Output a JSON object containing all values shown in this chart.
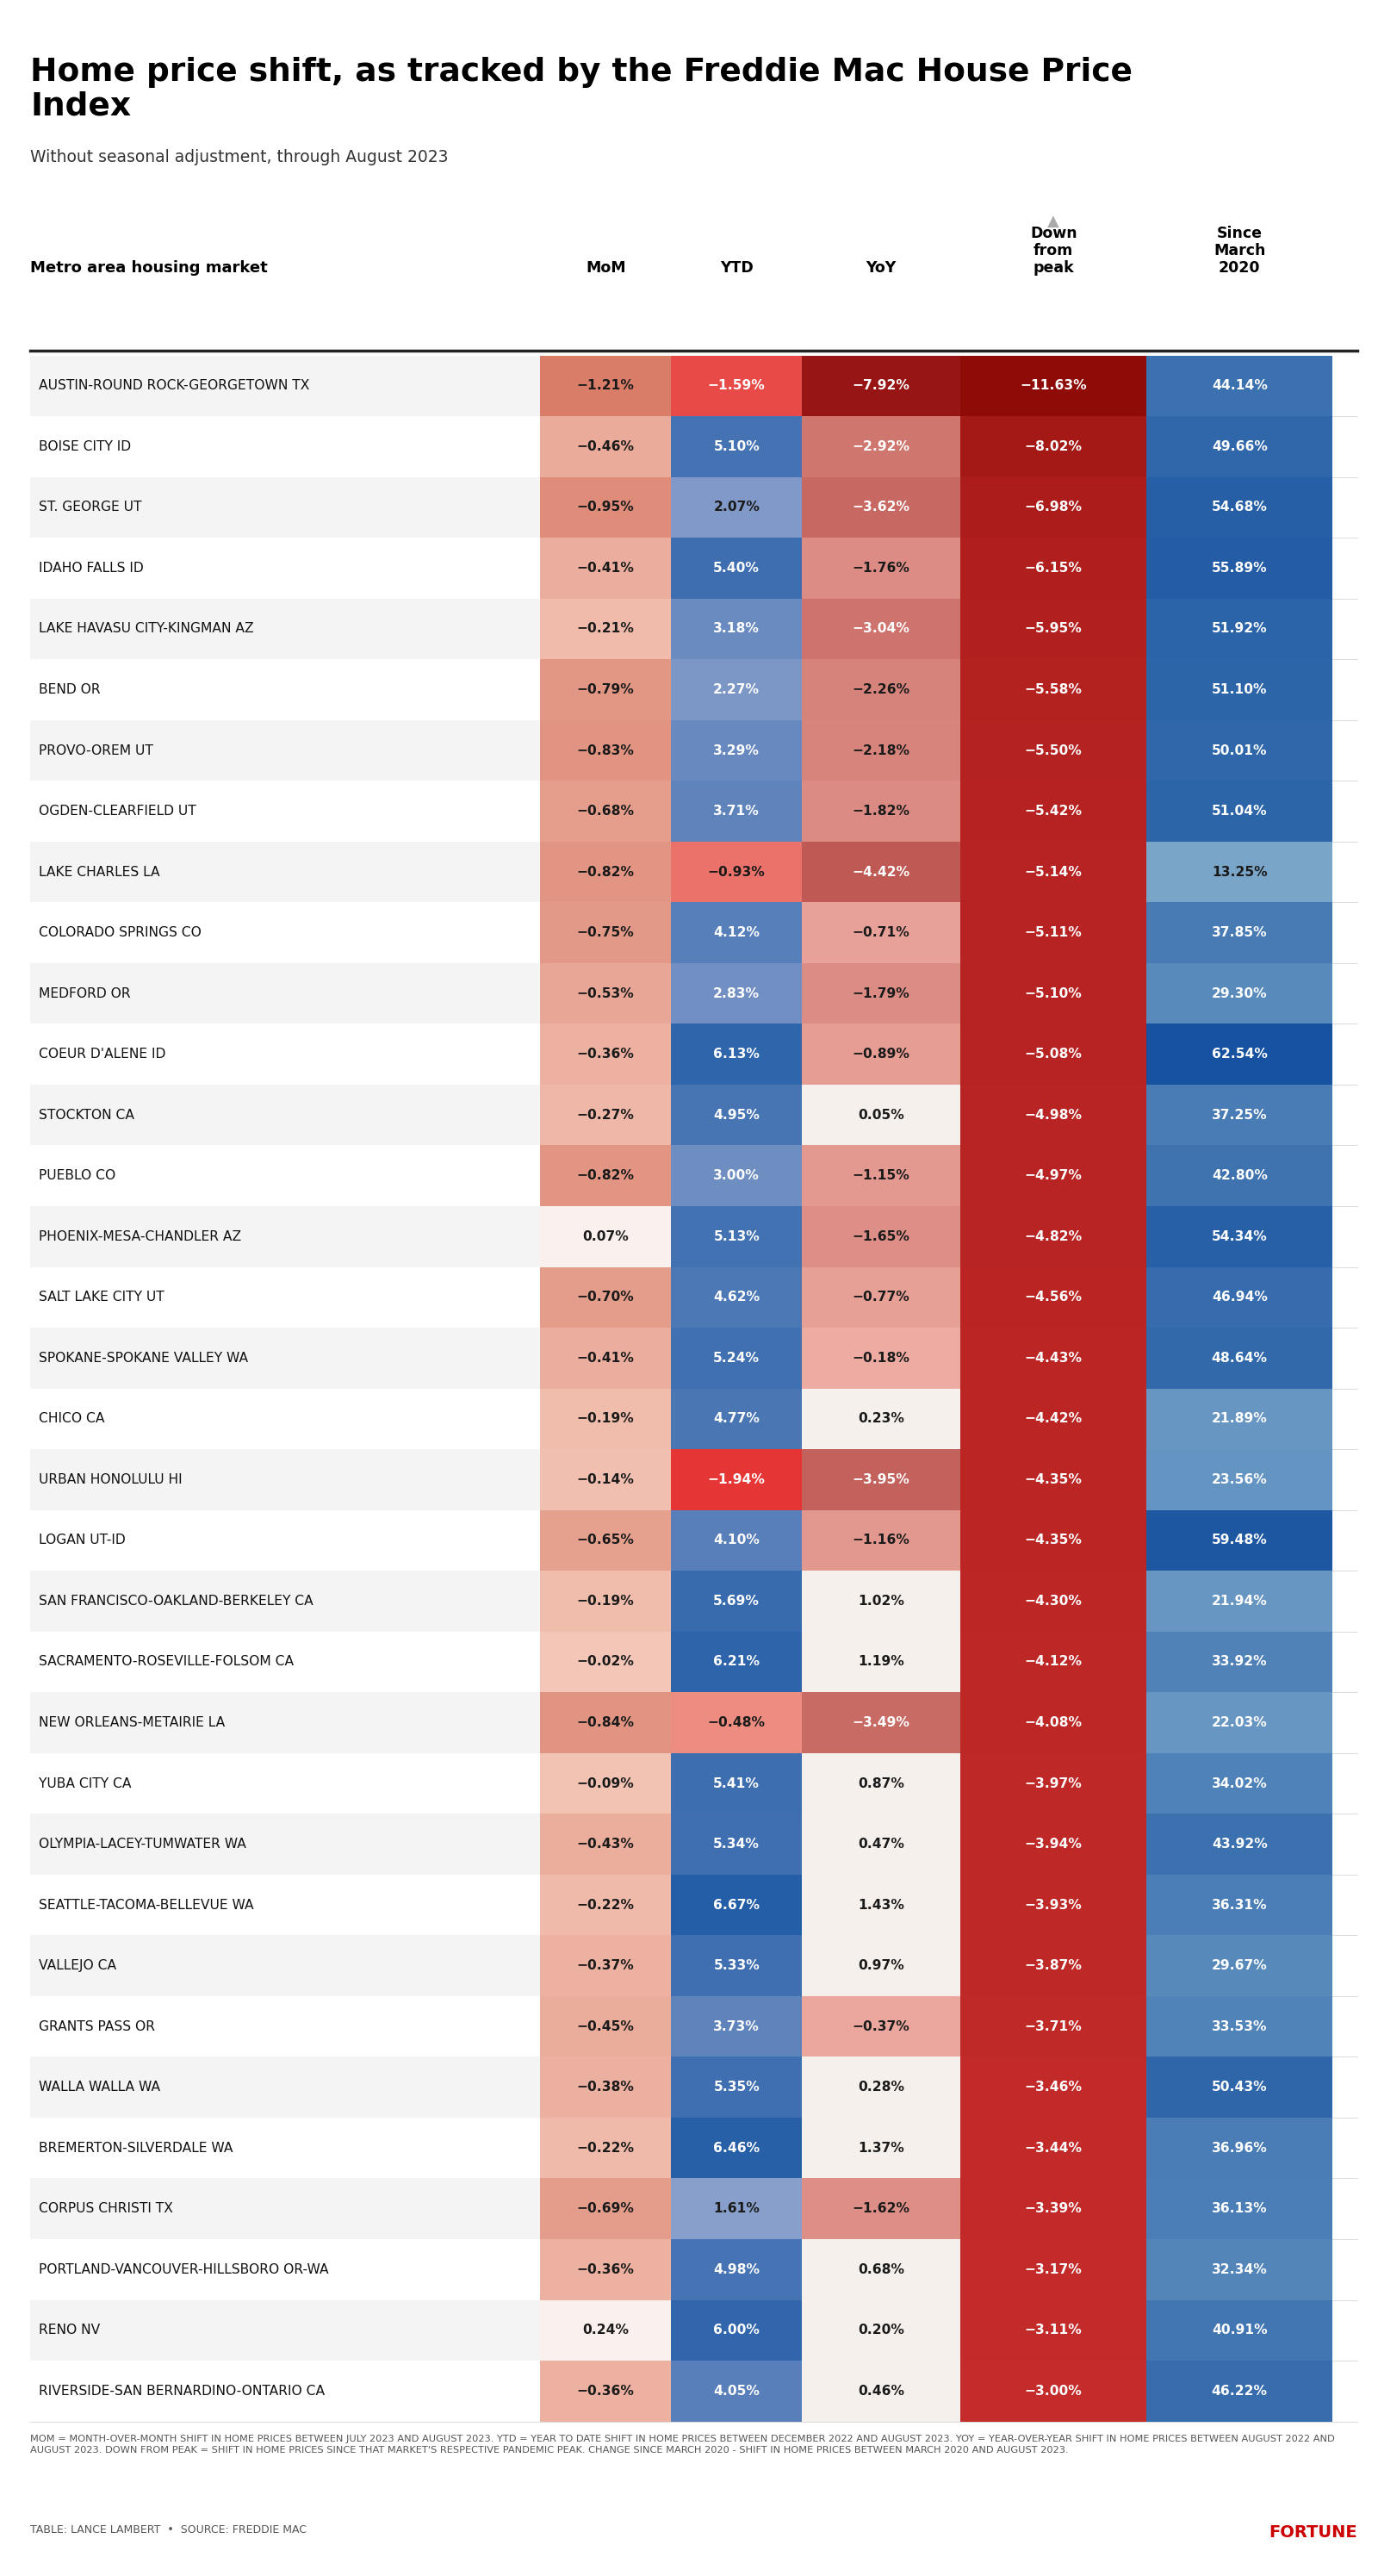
{
  "title": "Home price shift, as tracked by the Freddie Mac House Price\nIndex",
  "subtitle": "Without seasonal adjustment, through August 2023",
  "col_headers": [
    "MoM",
    "YTD",
    "YoY",
    "Down\nfrom\npeak",
    "Since\nMarch\n2020"
  ],
  "footer": "MOM = MONTH-OVER-MONTH SHIFT IN HOME PRICES BETWEEN JULY 2023 AND AUGUST 2023. YTD = YEAR TO DATE SHIFT IN HOME PRICES BETWEEN DECEMBER 2022 AND AUGUST 2023. YOY = YEAR-OVER-YEAR SHIFT IN HOME PRICES BETWEEN AUGUST 2022 AND AUGUST 2023. DOWN FROM PEAK = SHIFT IN HOME PRICES SINCE THAT MARKET'S RESPECTIVE PANDEMIC PEAK. CHANGE SINCE MARCH 2020 - SHIFT IN HOME PRICES BETWEEN MARCH 2020 AND AUGUST 2023.",
  "source": "TABLE: LANCE LAMBERT  •  SOURCE: FREDDIE MAC",
  "brand": "FORTUNE",
  "rows": [
    {
      "market": "AUSTIN-ROUND ROCK-GEORGETOWN TX",
      "mom": -1.21,
      "ytd": -1.59,
      "yoy": -7.92,
      "peak": -11.63,
      "since2020": 44.14
    },
    {
      "market": "BOISE CITY ID",
      "mom": -0.46,
      "ytd": 5.1,
      "yoy": -2.92,
      "peak": -8.02,
      "since2020": 49.66
    },
    {
      "market": "ST. GEORGE UT",
      "mom": -0.95,
      "ytd": 2.07,
      "yoy": -3.62,
      "peak": -6.98,
      "since2020": 54.68
    },
    {
      "market": "IDAHO FALLS ID",
      "mom": -0.41,
      "ytd": 5.4,
      "yoy": -1.76,
      "peak": -6.15,
      "since2020": 55.89
    },
    {
      "market": "LAKE HAVASU CITY-KINGMAN AZ",
      "mom": -0.21,
      "ytd": 3.18,
      "yoy": -3.04,
      "peak": -5.95,
      "since2020": 51.92
    },
    {
      "market": "BEND OR",
      "mom": -0.79,
      "ytd": 2.27,
      "yoy": -2.26,
      "peak": -5.58,
      "since2020": 51.1
    },
    {
      "market": "PROVO-OREM UT",
      "mom": -0.83,
      "ytd": 3.29,
      "yoy": -2.18,
      "peak": -5.5,
      "since2020": 50.01
    },
    {
      "market": "OGDEN-CLEARFIELD UT",
      "mom": -0.68,
      "ytd": 3.71,
      "yoy": -1.82,
      "peak": -5.42,
      "since2020": 51.04
    },
    {
      "market": "LAKE CHARLES LA",
      "mom": -0.82,
      "ytd": -0.93,
      "yoy": -4.42,
      "peak": -5.14,
      "since2020": 13.25
    },
    {
      "market": "COLORADO SPRINGS CO",
      "mom": -0.75,
      "ytd": 4.12,
      "yoy": -0.71,
      "peak": -5.11,
      "since2020": 37.85
    },
    {
      "market": "MEDFORD OR",
      "mom": -0.53,
      "ytd": 2.83,
      "yoy": -1.79,
      "peak": -5.1,
      "since2020": 29.3
    },
    {
      "market": "COEUR D'ALENE ID",
      "mom": -0.36,
      "ytd": 6.13,
      "yoy": -0.89,
      "peak": -5.08,
      "since2020": 62.54
    },
    {
      "market": "STOCKTON CA",
      "mom": -0.27,
      "ytd": 4.95,
      "yoy": 0.05,
      "peak": -4.98,
      "since2020": 37.25
    },
    {
      "market": "PUEBLO CO",
      "mom": -0.82,
      "ytd": 3.0,
      "yoy": -1.15,
      "peak": -4.97,
      "since2020": 42.8
    },
    {
      "market": "PHOENIX-MESA-CHANDLER AZ",
      "mom": 0.07,
      "ytd": 5.13,
      "yoy": -1.65,
      "peak": -4.82,
      "since2020": 54.34
    },
    {
      "market": "SALT LAKE CITY UT",
      "mom": -0.7,
      "ytd": 4.62,
      "yoy": -0.77,
      "peak": -4.56,
      "since2020": 46.94
    },
    {
      "market": "SPOKANE-SPOKANE VALLEY WA",
      "mom": -0.41,
      "ytd": 5.24,
      "yoy": -0.18,
      "peak": -4.43,
      "since2020": 48.64
    },
    {
      "market": "CHICO CA",
      "mom": -0.19,
      "ytd": 4.77,
      "yoy": 0.23,
      "peak": -4.42,
      "since2020": 21.89
    },
    {
      "market": "URBAN HONOLULU HI",
      "mom": -0.14,
      "ytd": -1.94,
      "yoy": -3.95,
      "peak": -4.35,
      "since2020": 23.56
    },
    {
      "market": "LOGAN UT-ID",
      "mom": -0.65,
      "ytd": 4.1,
      "yoy": -1.16,
      "peak": -4.35,
      "since2020": 59.48
    },
    {
      "market": "SAN FRANCISCO-OAKLAND-BERKELEY CA",
      "mom": -0.19,
      "ytd": 5.69,
      "yoy": 1.02,
      "peak": -4.3,
      "since2020": 21.94
    },
    {
      "market": "SACRAMENTO-ROSEVILLE-FOLSOM CA",
      "mom": -0.02,
      "ytd": 6.21,
      "yoy": 1.19,
      "peak": -4.12,
      "since2020": 33.92
    },
    {
      "market": "NEW ORLEANS-METAIRIE LA",
      "mom": -0.84,
      "ytd": -0.48,
      "yoy": -3.49,
      "peak": -4.08,
      "since2020": 22.03
    },
    {
      "market": "YUBA CITY CA",
      "mom": -0.09,
      "ytd": 5.41,
      "yoy": 0.87,
      "peak": -3.97,
      "since2020": 34.02
    },
    {
      "market": "OLYMPIA-LACEY-TUMWATER WA",
      "mom": -0.43,
      "ytd": 5.34,
      "yoy": 0.47,
      "peak": -3.94,
      "since2020": 43.92
    },
    {
      "market": "SEATTLE-TACOMA-BELLEVUE WA",
      "mom": -0.22,
      "ytd": 6.67,
      "yoy": 1.43,
      "peak": -3.93,
      "since2020": 36.31
    },
    {
      "market": "VALLEJO CA",
      "mom": -0.37,
      "ytd": 5.33,
      "yoy": 0.97,
      "peak": -3.87,
      "since2020": 29.67
    },
    {
      "market": "GRANTS PASS OR",
      "mom": -0.45,
      "ytd": 3.73,
      "yoy": -0.37,
      "peak": -3.71,
      "since2020": 33.53
    },
    {
      "market": "WALLA WALLA WA",
      "mom": -0.38,
      "ytd": 5.35,
      "yoy": 0.28,
      "peak": -3.46,
      "since2020": 50.43
    },
    {
      "market": "BREMERTON-SILVERDALE WA",
      "mom": -0.22,
      "ytd": 6.46,
      "yoy": 1.37,
      "peak": -3.44,
      "since2020": 36.96
    },
    {
      "market": "CORPUS CHRISTI TX",
      "mom": -0.69,
      "ytd": 1.61,
      "yoy": -1.62,
      "peak": -3.39,
      "since2020": 36.13
    },
    {
      "market": "PORTLAND-VANCOUVER-HILLSBORO OR-WA",
      "mom": -0.36,
      "ytd": 4.98,
      "yoy": 0.68,
      "peak": -3.17,
      "since2020": 32.34
    },
    {
      "market": "RENO NV",
      "mom": 0.24,
      "ytd": 6.0,
      "yoy": 0.2,
      "peak": -3.11,
      "since2020": 40.91
    },
    {
      "market": "RIVERSIDE-SAN BERNARDINO-ONTARIO CA",
      "mom": -0.36,
      "ytd": 4.05,
      "yoy": 0.46,
      "peak": -3.0,
      "since2020": 46.22
    }
  ]
}
